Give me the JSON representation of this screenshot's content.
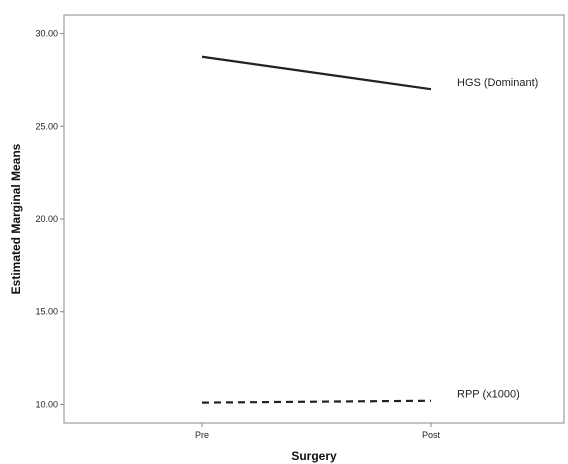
{
  "chart_data": {
    "type": "line",
    "title": "",
    "xlabel": "Surgery",
    "ylabel": "Estimated Marginal Means",
    "categories": [
      "Pre",
      "Post"
    ],
    "ylim": [
      9,
      31
    ],
    "yticks": [
      "10.00",
      "15.00",
      "20.00",
      "25.00",
      "30.00"
    ],
    "grid": false,
    "legend": "inline-right",
    "series": [
      {
        "name": "HGS (Dominant)",
        "values": [
          28.75,
          27.0
        ],
        "style": "solid",
        "color": "#222222"
      },
      {
        "name": "RPP (x1000)",
        "values": [
          10.1,
          10.2
        ],
        "style": "dashed",
        "color": "#222222"
      }
    ]
  }
}
